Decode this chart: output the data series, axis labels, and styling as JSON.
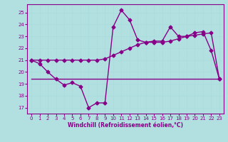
{
  "xlabel": "Windchill (Refroidissement éolien,°C)",
  "bg_color": "#b2e0e0",
  "line_color": "#880088",
  "grid_color": "#cceeee",
  "xlim": [
    -0.5,
    23.5
  ],
  "ylim": [
    16.5,
    25.7
  ],
  "yticks": [
    17,
    18,
    19,
    20,
    21,
    22,
    23,
    24,
    25
  ],
  "xticks": [
    0,
    1,
    2,
    3,
    4,
    5,
    6,
    7,
    8,
    9,
    10,
    11,
    12,
    13,
    14,
    15,
    16,
    17,
    18,
    19,
    20,
    21,
    22,
    23
  ],
  "series1_x": [
    0,
    1,
    2,
    3,
    4,
    5,
    6,
    7,
    8,
    9,
    10,
    11,
    12,
    13,
    14,
    15,
    16,
    17,
    18,
    19,
    20,
    21,
    22,
    23
  ],
  "series1_y": [
    21.0,
    20.7,
    20.0,
    19.4,
    18.9,
    19.1,
    18.8,
    17.0,
    17.4,
    17.4,
    23.8,
    25.2,
    24.4,
    22.7,
    22.5,
    22.6,
    22.6,
    23.8,
    23.0,
    23.0,
    23.3,
    23.4,
    21.8,
    19.4
  ],
  "series2_x": [
    0,
    1,
    2,
    3,
    4,
    5,
    6,
    7,
    8,
    9,
    10,
    11,
    12,
    13,
    14,
    15,
    16,
    17,
    18,
    19,
    20,
    21,
    22,
    23
  ],
  "series2_y": [
    21.0,
    21.0,
    21.0,
    21.0,
    21.0,
    21.0,
    21.0,
    21.0,
    21.0,
    21.1,
    21.4,
    21.7,
    22.0,
    22.3,
    22.5,
    22.5,
    22.5,
    22.6,
    22.8,
    23.0,
    23.1,
    23.2,
    23.3,
    19.4
  ],
  "series3_x": [
    0,
    2,
    23
  ],
  "series3_y": [
    19.4,
    19.4,
    19.4
  ],
  "marker": "D",
  "markersize": 2.5,
  "linewidth": 1.0
}
